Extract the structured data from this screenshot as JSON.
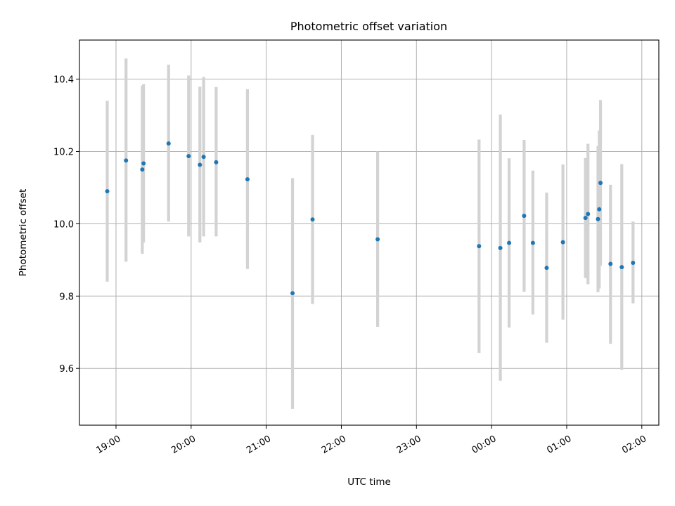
{
  "chart_data": {
    "type": "scatter",
    "title": "Photometric offset variation",
    "xlabel": "UTC time",
    "ylabel": "Photometric offset",
    "x_tick_labels": [
      "19:00",
      "20:00",
      "21:00",
      "22:00",
      "23:00",
      "00:00",
      "01:00",
      "02:00"
    ],
    "y_tick_labels": [
      "9.6",
      "9.8",
      "10.0",
      "10.2",
      "10.4"
    ],
    "x_ticks_minutes_from_start": [
      0,
      60,
      120,
      180,
      240,
      300,
      360,
      420
    ],
    "y_ticks": [
      9.6,
      9.8,
      10.0,
      10.2,
      10.4
    ],
    "xlim_minutes_from_start": [
      -29.2,
      433.6
    ],
    "ylim": [
      9.443,
      10.508
    ],
    "x_axis_start_time": "19:00",
    "grid": true,
    "marker_color": "#1f77b4",
    "errorbar_color": "#d3d3d3",
    "series": [
      {
        "points": [
          {
            "x": "18:53",
            "y": 10.09,
            "low": 9.84,
            "high": 10.34
          },
          {
            "x": "19:08",
            "y": 10.175,
            "low": 9.895,
            "high": 10.457
          },
          {
            "x": "19:21",
            "y": 10.15,
            "low": 9.917,
            "high": 10.382
          },
          {
            "x": "19:22",
            "y": 10.167,
            "low": 9.948,
            "high": 10.386
          },
          {
            "x": "19:42",
            "y": 10.222,
            "low": 10.006,
            "high": 10.44
          },
          {
            "x": "19:58",
            "y": 10.187,
            "low": 9.965,
            "high": 10.41
          },
          {
            "x": "20:07",
            "y": 10.163,
            "low": 9.948,
            "high": 10.379
          },
          {
            "x": "20:10",
            "y": 10.185,
            "low": 9.965,
            "high": 10.406
          },
          {
            "x": "20:20",
            "y": 10.17,
            "low": 9.965,
            "high": 10.378
          },
          {
            "x": "20:45",
            "y": 10.123,
            "low": 9.875,
            "high": 10.372
          },
          {
            "x": "21:21",
            "y": 9.808,
            "low": 9.488,
            "high": 10.126
          },
          {
            "x": "21:37",
            "y": 10.012,
            "low": 9.778,
            "high": 10.246
          },
          {
            "x": "22:29",
            "y": 9.957,
            "low": 9.715,
            "high": 10.2
          },
          {
            "x": "23:50",
            "y": 9.938,
            "low": 9.643,
            "high": 10.233
          },
          {
            "x": "00:07",
            "y": 9.933,
            "low": 9.566,
            "high": 10.302
          },
          {
            "x": "00:14",
            "y": 9.947,
            "low": 9.713,
            "high": 10.181
          },
          {
            "x": "00:26",
            "y": 10.022,
            "low": 9.812,
            "high": 10.232
          },
          {
            "x": "00:33",
            "y": 9.947,
            "low": 9.749,
            "high": 10.147
          },
          {
            "x": "00:44",
            "y": 9.878,
            "low": 9.671,
            "high": 10.086
          },
          {
            "x": "00:57",
            "y": 9.949,
            "low": 9.735,
            "high": 10.164
          },
          {
            "x": "01:15",
            "y": 10.016,
            "low": 9.85,
            "high": 10.182
          },
          {
            "x": "01:17",
            "y": 10.027,
            "low": 9.833,
            "high": 10.221
          },
          {
            "x": "01:25",
            "y": 10.013,
            "low": 9.811,
            "high": 10.215
          },
          {
            "x": "01:26",
            "y": 10.04,
            "low": 9.821,
            "high": 10.258
          },
          {
            "x": "01:27",
            "y": 10.113,
            "low": 9.884,
            "high": 10.342
          },
          {
            "x": "01:35",
            "y": 9.889,
            "low": 9.668,
            "high": 10.108
          },
          {
            "x": "01:44",
            "y": 9.88,
            "low": 9.596,
            "high": 10.165
          },
          {
            "x": "01:53",
            "y": 9.892,
            "low": 9.78,
            "high": 10.006
          }
        ]
      }
    ]
  }
}
